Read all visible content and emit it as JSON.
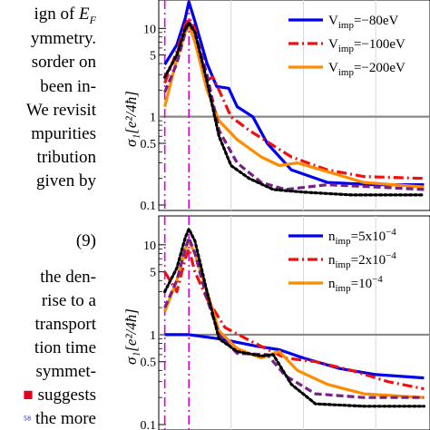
{
  "text_lines": [
    {
      "text": "ign of",
      "math": "E",
      "sub": "F"
    },
    {
      "text": "ymmetry."
    },
    {
      "text": "sorder on"
    },
    {
      "text": "been in-"
    },
    {
      "text": "We revisit"
    },
    {
      "text": "mpurities"
    },
    {
      "text": "tribution"
    },
    {
      "text": "given by"
    },
    {
      "text": "(9)"
    },
    {
      "text": "the den-"
    },
    {
      "text": "rise to a"
    },
    {
      "text": "transport"
    },
    {
      "text": "tion time"
    },
    {
      "text": "symmet-"
    },
    {
      "text": "suggests"
    },
    {
      "text": "the more"
    }
  ],
  "colors": {
    "blue": "#0000ee",
    "red": "#ee1111",
    "orange": "#ff8c00",
    "purple": "#7a1f8a",
    "black": "#000000",
    "magenta": "#dd00dd",
    "gray": "#888888",
    "citation_red": "#e4001b",
    "citation_blue": "#3030c0"
  },
  "chart_data": [
    {
      "type": "line",
      "ylabel": "σ₁[e²/4ħ]",
      "yscale": "log",
      "ylim": [
        0.1,
        20
      ],
      "yticks": [
        "10",
        "5",
        "1",
        "0.5",
        "0.1"
      ],
      "legend_position": "top-right",
      "series": [
        {
          "name": "V",
          "sub": "imp",
          "value": "=−80eV",
          "color": "blue",
          "style": "solid",
          "points": [
            [
              -1.15,
              3.9
            ],
            [
              -1.05,
              6.5
            ],
            [
              -0.98,
              13
            ],
            [
              -0.95,
              20
            ],
            [
              -0.9,
              12
            ],
            [
              -0.8,
              4
            ],
            [
              -0.72,
              2.2
            ],
            [
              -0.62,
              2.1
            ],
            [
              -0.55,
              1.3
            ],
            [
              -0.42,
              1.0
            ],
            [
              -0.3,
              0.5
            ],
            [
              -0.1,
              0.25
            ],
            [
              0.2,
              0.18
            ],
            [
              0.6,
              0.17
            ],
            [
              1.0,
              0.17
            ]
          ]
        },
        {
          "name": "V",
          "sub": "imp",
          "value": "=−100eV",
          "color": "red",
          "style": "dashdot",
          "points": [
            [
              -1.15,
              2.4
            ],
            [
              -1.05,
              5.5
            ],
            [
              -0.98,
              11
            ],
            [
              -0.95,
              13
            ],
            [
              -0.9,
              10
            ],
            [
              -0.85,
              4
            ],
            [
              -0.8,
              2.6
            ],
            [
              -0.75,
              2.8
            ],
            [
              -0.7,
              2
            ],
            [
              -0.6,
              1.0
            ],
            [
              -0.45,
              0.7
            ],
            [
              -0.1,
              0.35
            ],
            [
              0.2,
              0.25
            ],
            [
              0.5,
              0.21
            ],
            [
              1.0,
              0.2
            ]
          ]
        },
        {
          "name": "V",
          "sub": "imp",
          "value": "=−200eV",
          "color": "orange",
          "style": "solid",
          "points": [
            [
              -1.15,
              1.3
            ],
            [
              -1.05,
              4.5
            ],
            [
              -0.98,
              9
            ],
            [
              -0.95,
              11
            ],
            [
              -0.9,
              7
            ],
            [
              -0.8,
              2
            ],
            [
              -0.7,
              0.9
            ],
            [
              -0.55,
              0.55
            ],
            [
              -0.35,
              0.35
            ],
            [
              -0.2,
              0.28
            ],
            [
              -0.05,
              0.3
            ],
            [
              0.15,
              0.25
            ],
            [
              0.5,
              0.18
            ],
            [
              1.0,
              0.16
            ]
          ]
        },
        {
          "color": "purple",
          "style": "dashed",
          "points": [
            [
              -1.15,
              1.9
            ],
            [
              -1.05,
              4
            ],
            [
              -0.98,
              9
            ],
            [
              -0.95,
              12
            ],
            [
              -0.9,
              9
            ],
            [
              -0.8,
              3
            ],
            [
              -0.7,
              0.7
            ],
            [
              -0.55,
              0.3
            ],
            [
              -0.35,
              0.18
            ],
            [
              -0.15,
              0.15
            ],
            [
              0.2,
              0.17
            ],
            [
              0.6,
              0.16
            ],
            [
              1.0,
              0.15
            ]
          ]
        },
        {
          "color": "black",
          "style": "dotted",
          "points": [
            [
              -1.15,
              2.8
            ],
            [
              -1.05,
              5
            ],
            [
              -0.98,
              10
            ],
            [
              -0.95,
              11.5
            ],
            [
              -0.9,
              9
            ],
            [
              -0.8,
              2.5
            ],
            [
              -0.7,
              0.6
            ],
            [
              -0.6,
              0.28
            ],
            [
              -0.45,
              0.2
            ],
            [
              -0.25,
              0.15
            ],
            [
              0.0,
              0.14
            ],
            [
              0.4,
              0.13
            ],
            [
              1.0,
              0.13
            ]
          ]
        }
      ]
    },
    {
      "type": "line",
      "ylabel": "σ₁[e²/4ħ]",
      "yscale": "log",
      "ylim": [
        0.1,
        20
      ],
      "yticks": [
        "10",
        "5",
        "1",
        "0.5",
        "0.1"
      ],
      "legend_position": "top-right",
      "series": [
        {
          "name": "n",
          "sub": "imp",
          "value": "=5x10",
          "exp": "−4",
          "color": "blue",
          "style": "solid",
          "points": [
            [
              -1.15,
              1.0
            ],
            [
              -0.95,
              1.0
            ],
            [
              -0.7,
              0.9
            ],
            [
              -0.4,
              0.75
            ],
            [
              -0.2,
              0.68
            ],
            [
              0.0,
              0.55
            ],
            [
              0.3,
              0.42
            ],
            [
              0.6,
              0.36
            ],
            [
              1.0,
              0.33
            ]
          ]
        },
        {
          "name": "n",
          "sub": "imp",
          "value": "=2x10",
          "exp": "−4",
          "color": "red",
          "style": "dashdot",
          "points": [
            [
              -1.15,
              5.0
            ],
            [
              -1.05,
              3
            ],
            [
              -0.98,
              7
            ],
            [
              -0.95,
              9
            ],
            [
              -0.9,
              5
            ],
            [
              -0.8,
              2.5
            ],
            [
              -0.65,
              1.2
            ],
            [
              -0.4,
              0.8
            ],
            [
              -0.15,
              0.55
            ],
            [
              0.1,
              0.5
            ],
            [
              0.4,
              0.4
            ],
            [
              0.7,
              0.3
            ],
            [
              1.0,
              0.25
            ]
          ]
        },
        {
          "name": "n",
          "sub": "imp",
          "value": "=10",
          "exp": "−4",
          "color": "orange",
          "style": "solid",
          "points": [
            [
              -1.15,
              1.8
            ],
            [
              -1.05,
              4
            ],
            [
              -0.98,
              9
            ],
            [
              -0.95,
              11
            ],
            [
              -0.9,
              8
            ],
            [
              -0.8,
              3
            ],
            [
              -0.7,
              1.1
            ],
            [
              -0.55,
              0.7
            ],
            [
              -0.35,
              0.55
            ],
            [
              -0.2,
              0.65
            ],
            [
              -0.05,
              0.4
            ],
            [
              0.2,
              0.28
            ],
            [
              0.5,
              0.22
            ],
            [
              1.0,
              0.2
            ]
          ]
        },
        {
          "color": "purple",
          "style": "dashed",
          "points": [
            [
              -1.15,
              2.0
            ],
            [
              -1.05,
              4
            ],
            [
              -0.98,
              9
            ],
            [
              -0.95,
              12
            ],
            [
              -0.9,
              8
            ],
            [
              -0.8,
              2.5
            ],
            [
              -0.7,
              1.0
            ],
            [
              -0.55,
              0.62
            ],
            [
              -0.3,
              0.6
            ],
            [
              -0.15,
              0.35
            ],
            [
              0.1,
              0.22
            ],
            [
              0.5,
              0.2
            ],
            [
              1.0,
              0.2
            ]
          ]
        },
        {
          "color": "black",
          "style": "dotted",
          "points": [
            [
              -1.15,
              3.0
            ],
            [
              -1.05,
              5.5
            ],
            [
              -0.98,
              12
            ],
            [
              -0.95,
              15
            ],
            [
              -0.9,
              11
            ],
            [
              -0.8,
              3
            ],
            [
              -0.7,
              0.9
            ],
            [
              -0.55,
              0.65
            ],
            [
              -0.35,
              0.58
            ],
            [
              -0.25,
              0.6
            ],
            [
              -0.1,
              0.28
            ],
            [
              0.1,
              0.17
            ],
            [
              0.5,
              0.16
            ],
            [
              1.0,
              0.16
            ]
          ]
        }
      ]
    }
  ]
}
